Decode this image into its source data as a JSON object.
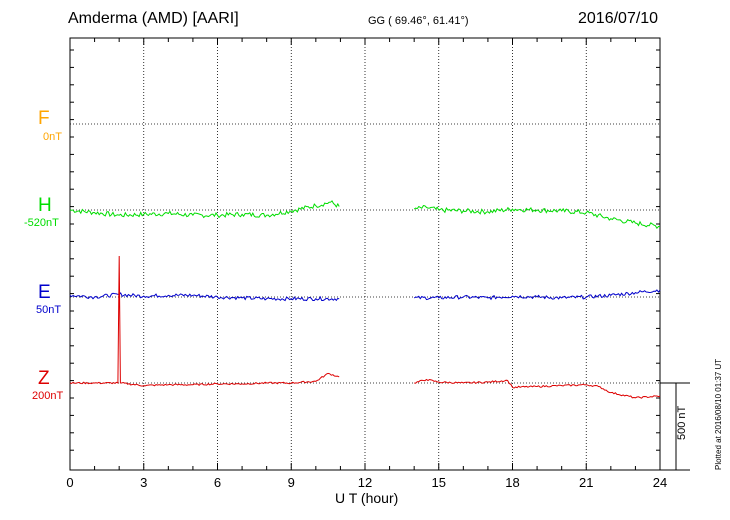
{
  "header": {
    "station": "Amderma (AMD)  [AARI]",
    "coords": "GG ( 69.46°,  61.41°)",
    "date": "2016/07/10"
  },
  "footer": {
    "xlabel": "U T (hour)",
    "scale": "500 nT",
    "plotted": "Plotted at 2016/08/10 01:37 UT"
  },
  "channels": [
    {
      "name": "F",
      "baseline": "0nT",
      "color": "#ffa500"
    },
    {
      "name": "H",
      "baseline": "-520nT",
      "color": "#00dd00"
    },
    {
      "name": "E",
      "baseline": "50nT",
      "color": "#0000cc"
    },
    {
      "name": "Z",
      "baseline": "200nT",
      "color": "#dd0000"
    }
  ],
  "chart_data": {
    "type": "line",
    "title": "Amderma (AMD)  [AARI]",
    "xlabel": "U T (hour)",
    "x_ticks": [
      "0",
      "3",
      "6",
      "9",
      "12",
      "15",
      "18",
      "21",
      "24"
    ],
    "xlim": [
      0,
      24
    ],
    "grid": true,
    "scale_bar_nT": 500,
    "series": [
      {
        "name": "H",
        "color": "#00dd00",
        "baseline_nT": -520,
        "segments": [
          [
            [
              0,
              0
            ],
            [
              1,
              -15
            ],
            [
              2,
              -30
            ],
            [
              3,
              -25
            ],
            [
              4,
              -20
            ],
            [
              5,
              -30
            ],
            [
              6,
              -30
            ],
            [
              7,
              -25
            ],
            [
              8,
              -30
            ],
            [
              9,
              -5
            ],
            [
              10,
              25
            ],
            [
              10.6,
              45
            ],
            [
              10.95,
              20
            ]
          ],
          [
            [
              14,
              5
            ],
            [
              14.5,
              15
            ],
            [
              15,
              0
            ],
            [
              16,
              -5
            ],
            [
              17,
              -10
            ],
            [
              18,
              5
            ],
            [
              19,
              0
            ],
            [
              20,
              -5
            ],
            [
              21,
              -15
            ],
            [
              22,
              -50
            ],
            [
              23,
              -75
            ],
            [
              24,
              -95
            ]
          ]
        ]
      },
      {
        "name": "E",
        "color": "#0000cc",
        "baseline_nT": 50,
        "segments": [
          [
            [
              0,
              10
            ],
            [
              1,
              0
            ],
            [
              2,
              15
            ],
            [
              3,
              5
            ],
            [
              4,
              10
            ],
            [
              5,
              10
            ],
            [
              6,
              0
            ],
            [
              7,
              -5
            ],
            [
              8,
              -10
            ],
            [
              9,
              -10
            ],
            [
              10,
              -10
            ],
            [
              10.95,
              -10
            ]
          ],
          [
            [
              14,
              -5
            ],
            [
              15,
              -5
            ],
            [
              16,
              0
            ],
            [
              17,
              -5
            ],
            [
              18,
              5
            ],
            [
              19,
              0
            ],
            [
              20,
              -5
            ],
            [
              21,
              0
            ],
            [
              22,
              10
            ],
            [
              23,
              25
            ],
            [
              24,
              40
            ]
          ]
        ]
      },
      {
        "name": "Z",
        "color": "#dd0000",
        "baseline_nT": 200,
        "segments": [
          [
            [
              0,
              0
            ],
            [
              1,
              0
            ],
            [
              1.95,
              0
            ],
            [
              2,
              730
            ],
            [
              2.05,
              0
            ],
            [
              3,
              -15
            ],
            [
              4,
              -10
            ],
            [
              5,
              -10
            ],
            [
              6,
              -5
            ],
            [
              7,
              -5
            ],
            [
              8,
              0
            ],
            [
              9,
              0
            ],
            [
              10,
              10
            ],
            [
              10.5,
              55
            ],
            [
              10.95,
              35
            ]
          ],
          [
            [
              14,
              0
            ],
            [
              14.5,
              20
            ],
            [
              15,
              5
            ],
            [
              16,
              0
            ],
            [
              17,
              5
            ],
            [
              17.8,
              15
            ],
            [
              18,
              -25
            ],
            [
              19,
              -20
            ],
            [
              20,
              -15
            ],
            [
              21,
              -10
            ],
            [
              21.5,
              -20
            ],
            [
              22,
              -55
            ],
            [
              23,
              -85
            ],
            [
              24,
              -75
            ]
          ]
        ]
      }
    ]
  }
}
